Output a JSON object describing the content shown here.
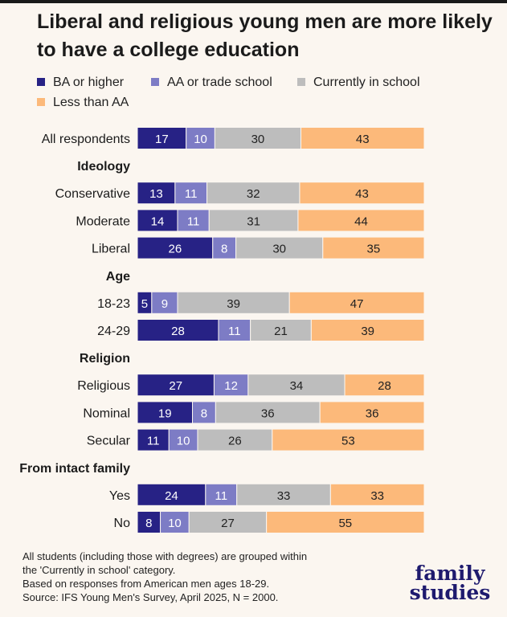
{
  "chart_data": {
    "type": "bar",
    "orientation": "horizontal",
    "stacked": true,
    "title": "Liberal and religious young men are more likely to have a college education",
    "legend_position": "top-left",
    "series_meta": [
      {
        "name": "BA or higher",
        "color": "#272285"
      },
      {
        "name": "AA or trade school",
        "color": "#7d7cc5"
      },
      {
        "name": "Currently in school",
        "color": "#bdbdbd"
      },
      {
        "name": "Less than AA",
        "color": "#fcb97a"
      }
    ],
    "groups": [
      {
        "header": "",
        "rows": [
          {
            "label": "All respondents",
            "values": [
              17,
              10,
              30,
              43
            ]
          }
        ]
      },
      {
        "header": "Ideology",
        "rows": [
          {
            "label": "Conservative",
            "values": [
              13,
              11,
              32,
              43
            ]
          },
          {
            "label": "Moderate",
            "values": [
              14,
              11,
              31,
              44
            ]
          },
          {
            "label": "Liberal",
            "values": [
              26,
              8,
              30,
              35
            ]
          }
        ]
      },
      {
        "header": "Age",
        "rows": [
          {
            "label": "18-23",
            "values": [
              5,
              9,
              39,
              47
            ]
          },
          {
            "label": "24-29",
            "values": [
              28,
              11,
              21,
              39
            ]
          }
        ]
      },
      {
        "header": "Religion",
        "rows": [
          {
            "label": "Religious",
            "values": [
              27,
              12,
              34,
              28
            ]
          },
          {
            "label": "Nominal",
            "values": [
              19,
              8,
              36,
              36
            ]
          },
          {
            "label": "Secular",
            "values": [
              11,
              10,
              26,
              53
            ]
          }
        ]
      },
      {
        "header": "From intact family",
        "rows": [
          {
            "label": "Yes",
            "values": [
              24,
              11,
              33,
              33
            ]
          },
          {
            "label": "No",
            "values": [
              8,
              10,
              27,
              55
            ]
          }
        ]
      }
    ]
  },
  "footnote": [
    "All students (including those with degrees) are grouped within",
    "the 'Currently in school' category.",
    "Based on responses from American men ages 18-29.",
    "Source: IFS Young Men's Survey, April 2025, N = 2000."
  ],
  "logo": {
    "line1": "family",
    "line2": "studies"
  }
}
